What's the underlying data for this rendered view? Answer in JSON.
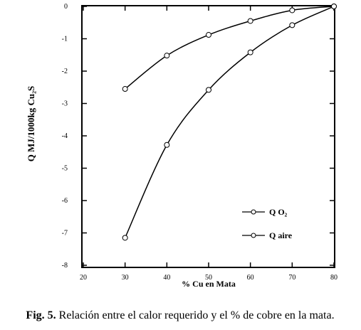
{
  "chart_data": {
    "type": "line",
    "x_label": "% Cu en Mata",
    "y_label": "Q MJ/1000kg Cu₂S",
    "xlim": [
      20,
      80
    ],
    "ylim": [
      -8,
      0
    ],
    "xticks": [
      20,
      30,
      40,
      50,
      60,
      70,
      80
    ],
    "yticks": [
      0,
      -1,
      -2,
      -3,
      -4,
      -5,
      -6,
      -7,
      -8
    ],
    "legend": "lower right",
    "series": [
      {
        "name": "Q O₂",
        "color": "#000000",
        "x": [
          30,
          40,
          50,
          60,
          70,
          80
        ],
        "values": [
          -2.55,
          -1.52,
          -0.88,
          -0.45,
          -0.12,
          0
        ]
      },
      {
        "name": "Q aire",
        "color": "#000000",
        "x": [
          30,
          40,
          50,
          60,
          70,
          80
        ],
        "values": [
          -7.15,
          -4.28,
          -2.58,
          -1.42,
          -0.58,
          0
        ]
      }
    ]
  },
  "caption": {
    "label": "Fig. 5.",
    "text": "Relación entre el calor requerido y el % de cobre en la mata."
  }
}
